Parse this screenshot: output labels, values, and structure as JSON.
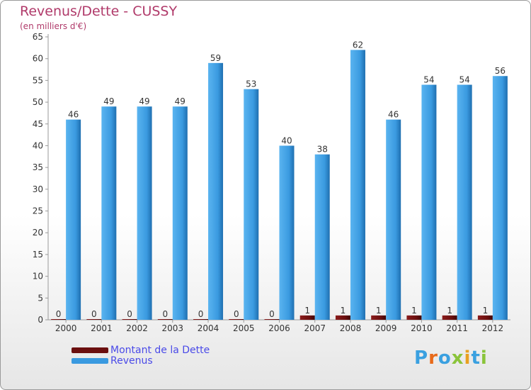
{
  "title": "Revenus/Dette - CUSSY",
  "subtitle": "(en milliers d'€)",
  "logo_text": "Proxiti",
  "colors": {
    "dette": "#6b0f0f",
    "revenus": "#3a9ae0",
    "title": "#b03a6a",
    "legend_text": "#4a4ae8",
    "logo": [
      "#3aa0e0",
      "#e86a1a",
      "#3aa0e0",
      "#8ac43a",
      "#e8a020",
      "#3aa0e0",
      "#8ac43a"
    ]
  },
  "chart_data": {
    "type": "bar",
    "title": "Revenus/Dette - CUSSY",
    "subtitle": "(en milliers d'€)",
    "categories": [
      "2000",
      "2001",
      "2002",
      "2003",
      "2004",
      "2005",
      "2006",
      "2007",
      "2008",
      "2009",
      "2010",
      "2011",
      "2012"
    ],
    "series": [
      {
        "name": "Montant de la Dette",
        "values": [
          0,
          0,
          0,
          0,
          0,
          0,
          0,
          1,
          1,
          1,
          1,
          1,
          1
        ]
      },
      {
        "name": "Revenus",
        "values": [
          46,
          49,
          49,
          49,
          59,
          53,
          40,
          38,
          62,
          46,
          54,
          54,
          56
        ]
      }
    ],
    "ylim": [
      0,
      65
    ],
    "yticks": [
      0,
      5,
      10,
      15,
      20,
      25,
      30,
      35,
      40,
      45,
      50,
      55,
      60,
      65
    ],
    "grid": false,
    "legend": "bottom-left"
  }
}
